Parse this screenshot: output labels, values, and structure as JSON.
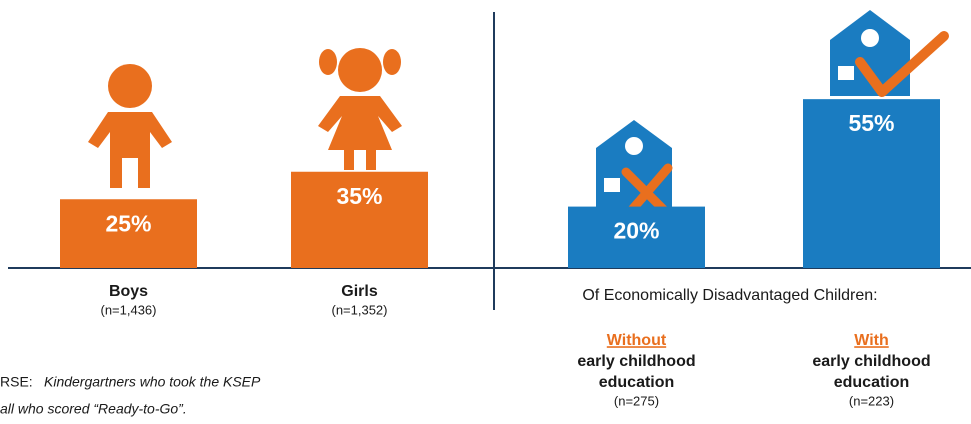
{
  "chart_data": [
    {
      "type": "bar",
      "categories": [
        "Boys",
        "Girls"
      ],
      "category_notes": [
        "(n=1,436)",
        "(n=1,352)"
      ],
      "values": [
        25,
        35
      ],
      "value_labels": [
        "25%",
        "35%"
      ],
      "color": "#e96f1e"
    },
    {
      "type": "bar",
      "subtitle": "Of Economically Disadvantaged Children:",
      "categories": [
        "Without",
        "With"
      ],
      "category_lines": [
        [
          "early childhood",
          "education"
        ],
        [
          "early childhood",
          "education"
        ]
      ],
      "category_notes": [
        "(n=275)",
        "(n=223)"
      ],
      "values": [
        20,
        55
      ],
      "value_labels": [
        "20%",
        "55%"
      ],
      "color": "#1a7cc1",
      "category_color": "#e96f1e"
    }
  ],
  "footnote": {
    "lead": "RSE:",
    "lines": [
      "Kindergartners who took the KSEP",
      "all who scored “Ready-to-Go”."
    ]
  }
}
